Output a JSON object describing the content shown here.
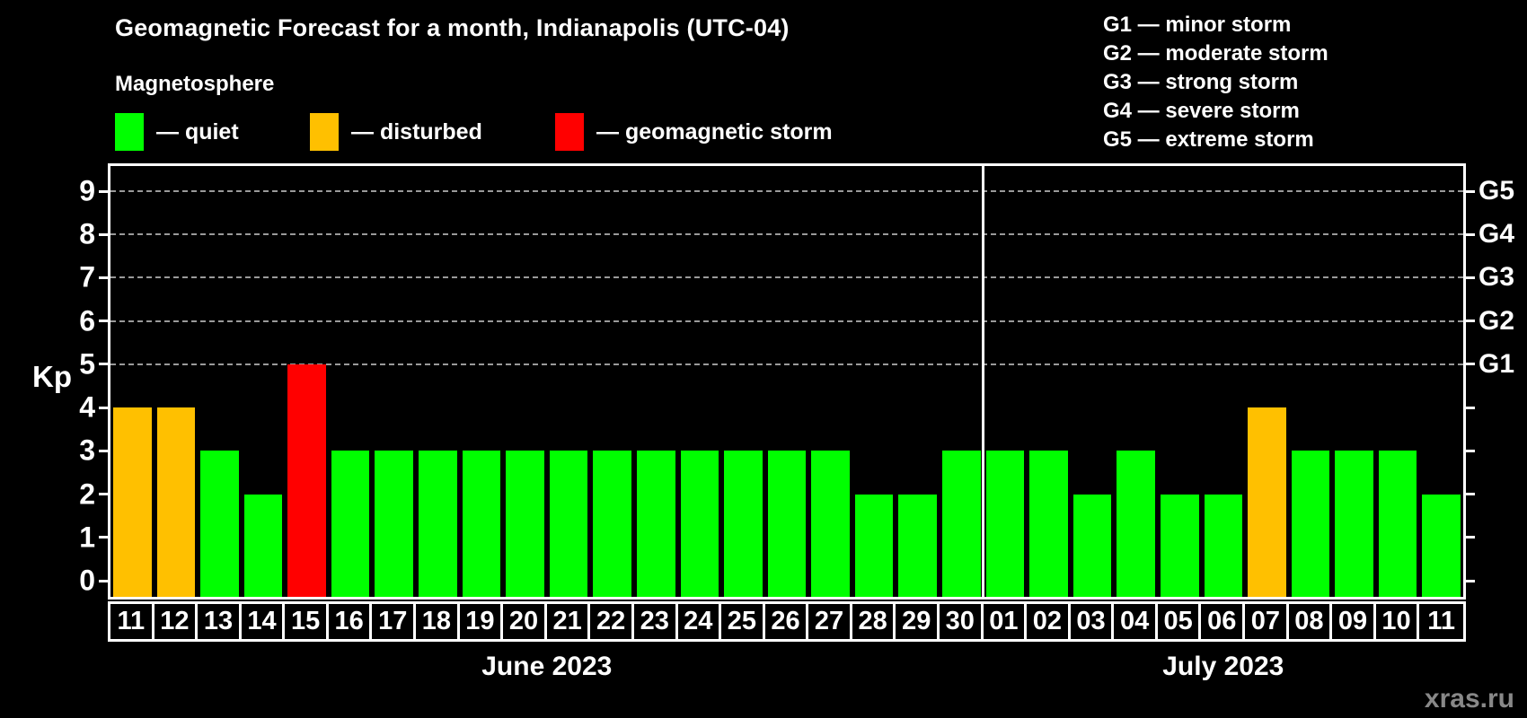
{
  "title": "Geomagnetic Forecast for a month, Indianapolis (UTC-04)",
  "legend": {
    "heading": "Magnetosphere",
    "items": [
      {
        "name": "quiet",
        "label": "— quiet",
        "color": "#00ff00"
      },
      {
        "name": "disturbed",
        "label": "— disturbed",
        "color": "#ffc000"
      },
      {
        "name": "storm",
        "label": "— geomagnetic storm",
        "color": "#ff0000"
      }
    ]
  },
  "g_legend": [
    "G1 — minor storm",
    "G2 — moderate storm",
    "G3 — strong storm",
    "G4 — severe storm",
    "G5 — extreme storm"
  ],
  "watermark": "xras.ru",
  "chart_data": {
    "type": "bar",
    "ylabel": "Kp",
    "ylim": [
      0,
      9
    ],
    "y_ticks": [
      0,
      1,
      2,
      3,
      4,
      5,
      6,
      7,
      8,
      9
    ],
    "gridlines_at": [
      5,
      6,
      7,
      8,
      9
    ],
    "right_axis_labels": [
      {
        "kp": 5,
        "label": "G1"
      },
      {
        "kp": 6,
        "label": "G2"
      },
      {
        "kp": 7,
        "label": "G3"
      },
      {
        "kp": 8,
        "label": "G4"
      },
      {
        "kp": 9,
        "label": "G5"
      }
    ],
    "status_colors": {
      "quiet": "#00ff00",
      "disturbed": "#ffc000",
      "storm": "#ff0000"
    },
    "months": [
      {
        "label": "June 2023",
        "days": [
          {
            "day": "11",
            "kp": 4,
            "status": "disturbed"
          },
          {
            "day": "12",
            "kp": 4,
            "status": "disturbed"
          },
          {
            "day": "13",
            "kp": 3,
            "status": "quiet"
          },
          {
            "day": "14",
            "kp": 2,
            "status": "quiet"
          },
          {
            "day": "15",
            "kp": 5,
            "status": "storm"
          },
          {
            "day": "16",
            "kp": 3,
            "status": "quiet"
          },
          {
            "day": "17",
            "kp": 3,
            "status": "quiet"
          },
          {
            "day": "18",
            "kp": 3,
            "status": "quiet"
          },
          {
            "day": "19",
            "kp": 3,
            "status": "quiet"
          },
          {
            "day": "20",
            "kp": 3,
            "status": "quiet"
          },
          {
            "day": "21",
            "kp": 3,
            "status": "quiet"
          },
          {
            "day": "22",
            "kp": 3,
            "status": "quiet"
          },
          {
            "day": "23",
            "kp": 3,
            "status": "quiet"
          },
          {
            "day": "24",
            "kp": 3,
            "status": "quiet"
          },
          {
            "day": "25",
            "kp": 3,
            "status": "quiet"
          },
          {
            "day": "26",
            "kp": 3,
            "status": "quiet"
          },
          {
            "day": "27",
            "kp": 3,
            "status": "quiet"
          },
          {
            "day": "28",
            "kp": 2,
            "status": "quiet"
          },
          {
            "day": "29",
            "kp": 2,
            "status": "quiet"
          },
          {
            "day": "30",
            "kp": 3,
            "status": "quiet"
          }
        ]
      },
      {
        "label": "July 2023",
        "days": [
          {
            "day": "01",
            "kp": 3,
            "status": "quiet"
          },
          {
            "day": "02",
            "kp": 3,
            "status": "quiet"
          },
          {
            "day": "03",
            "kp": 2,
            "status": "quiet"
          },
          {
            "day": "04",
            "kp": 3,
            "status": "quiet"
          },
          {
            "day": "05",
            "kp": 2,
            "status": "quiet"
          },
          {
            "day": "06",
            "kp": 2,
            "status": "quiet"
          },
          {
            "day": "07",
            "kp": 4,
            "status": "disturbed"
          },
          {
            "day": "08",
            "kp": 3,
            "status": "quiet"
          },
          {
            "day": "09",
            "kp": 3,
            "status": "quiet"
          },
          {
            "day": "10",
            "kp": 3,
            "status": "quiet"
          },
          {
            "day": "11",
            "kp": 2,
            "status": "quiet"
          }
        ]
      }
    ]
  }
}
